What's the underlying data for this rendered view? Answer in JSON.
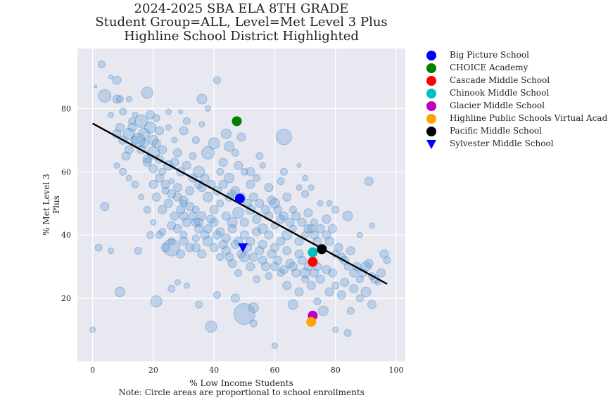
{
  "title_lines": [
    "2024-2025 SBA ELA 8TH GRADE",
    "Student Group=ALL, Level=Met Level 3 Plus",
    "Highline School District Highlighted"
  ],
  "chart_data": {
    "type": "scatter",
    "title": "2024-2025 SBA ELA 8TH GRADE\nStudent Group=ALL, Level=Met Level 3 Plus\nHighline School District Highlighted",
    "xlabel": "% Low Income Students",
    "ylabel": "% Met Level 3 Plus",
    "note": "Note: Circle areas are proportional to school enrollments",
    "xlim": [
      -5,
      103
    ],
    "ylim": [
      0,
      99
    ],
    "xticks": [
      0,
      20,
      40,
      60,
      80,
      100
    ],
    "yticks": [
      20,
      40,
      60,
      80
    ],
    "grid": true,
    "legend_position": "outside-right",
    "background_color": "#e8e8f1",
    "background_points_color": "#4c8fca",
    "trend_line": {
      "x": [
        0,
        97
      ],
      "y": [
        75.3,
        24.5
      ],
      "color": "#000000"
    },
    "background_points": [
      [
        3,
        94,
        5
      ],
      [
        6,
        90,
        3
      ],
      [
        8,
        89,
        6
      ],
      [
        1,
        87,
        2
      ],
      [
        4,
        84,
        9
      ],
      [
        8,
        83,
        6
      ],
      [
        9,
        83,
        5
      ],
      [
        12,
        83,
        4
      ],
      [
        18,
        85,
        8
      ],
      [
        6,
        78,
        4
      ],
      [
        10,
        79,
        5
      ],
      [
        14,
        78,
        4
      ],
      [
        16,
        76,
        9
      ],
      [
        19,
        78,
        6
      ],
      [
        21,
        77,
        5
      ],
      [
        25,
        79,
        4
      ],
      [
        29,
        79,
        3
      ],
      [
        22,
        73,
        6
      ],
      [
        9,
        74,
        6
      ],
      [
        12,
        72,
        8
      ],
      [
        15,
        70,
        10
      ],
      [
        17,
        72,
        8
      ],
      [
        20,
        70,
        7
      ],
      [
        13,
        76,
        5
      ],
      [
        19,
        74,
        8
      ],
      [
        25,
        74,
        4
      ],
      [
        30,
        73,
        6
      ],
      [
        31,
        76,
        5
      ],
      [
        36,
        75,
        4
      ],
      [
        34,
        70,
        5
      ],
      [
        27,
        70,
        4
      ],
      [
        28,
        66,
        6
      ],
      [
        20,
        66,
        9
      ],
      [
        22,
        64,
        6
      ],
      [
        18,
        63,
        6
      ],
      [
        23,
        60,
        5
      ],
      [
        25,
        62,
        7
      ],
      [
        33,
        65,
        5
      ],
      [
        35,
        60,
        8
      ],
      [
        38,
        66,
        9
      ],
      [
        40,
        69,
        8
      ],
      [
        44,
        72,
        7
      ],
      [
        47,
        66,
        5
      ],
      [
        48,
        62,
        6
      ],
      [
        42,
        60,
        5
      ],
      [
        43,
        63,
        6
      ],
      [
        45,
        58,
        7
      ],
      [
        50,
        60,
        5
      ],
      [
        46,
        53,
        6
      ],
      [
        52,
        56,
        6
      ],
      [
        54,
        58,
        5
      ],
      [
        56,
        62,
        4
      ],
      [
        58,
        55,
        6
      ],
      [
        60,
        50,
        7
      ],
      [
        62,
        57,
        5
      ],
      [
        64,
        52,
        6
      ],
      [
        66,
        48,
        5
      ],
      [
        68,
        55,
        4
      ],
      [
        70,
        53,
        5
      ],
      [
        71,
        47,
        6
      ],
      [
        73,
        44,
        5
      ],
      [
        75,
        50,
        4
      ],
      [
        77,
        45,
        6
      ],
      [
        20,
        56,
        6
      ],
      [
        24,
        54,
        5
      ],
      [
        26,
        57,
        4
      ],
      [
        28,
        52,
        6
      ],
      [
        30,
        50,
        5
      ],
      [
        32,
        54,
        6
      ],
      [
        34,
        48,
        5
      ],
      [
        36,
        55,
        6
      ],
      [
        38,
        52,
        7
      ],
      [
        40,
        48,
        6
      ],
      [
        42,
        50,
        5
      ],
      [
        44,
        46,
        6
      ],
      [
        46,
        44,
        7
      ],
      [
        48,
        47,
        8
      ],
      [
        50,
        44,
        6
      ],
      [
        52,
        48,
        7
      ],
      [
        54,
        45,
        6
      ],
      [
        56,
        42,
        7
      ],
      [
        58,
        46,
        6
      ],
      [
        60,
        43,
        5
      ],
      [
        62,
        45,
        6
      ],
      [
        64,
        40,
        7
      ],
      [
        66,
        42,
        5
      ],
      [
        68,
        38,
        6
      ],
      [
        70,
        40,
        5
      ],
      [
        72,
        42,
        6
      ],
      [
        74,
        38,
        6
      ],
      [
        76,
        36,
        5
      ],
      [
        78,
        38,
        6
      ],
      [
        80,
        34,
        5
      ],
      [
        82,
        33,
        6
      ],
      [
        84,
        30,
        5
      ],
      [
        86,
        28,
        6
      ],
      [
        88,
        26,
        5
      ],
      [
        90,
        30,
        7
      ],
      [
        92,
        27,
        5
      ],
      [
        94,
        25,
        4
      ],
      [
        96,
        34,
        6
      ],
      [
        97,
        32,
        5
      ],
      [
        90,
        22,
        7
      ],
      [
        92,
        18,
        6
      ],
      [
        88,
        20,
        5
      ],
      [
        85,
        16,
        5
      ],
      [
        82,
        21,
        6
      ],
      [
        80,
        24,
        5
      ],
      [
        78,
        22,
        6
      ],
      [
        76,
        16,
        7
      ],
      [
        74,
        19,
        5
      ],
      [
        72,
        24,
        6
      ],
      [
        70,
        26,
        5
      ],
      [
        68,
        22,
        6
      ],
      [
        66,
        18,
        7
      ],
      [
        64,
        24,
        6
      ],
      [
        62,
        28,
        5
      ],
      [
        60,
        30,
        6
      ],
      [
        58,
        27,
        5
      ],
      [
        56,
        32,
        6
      ],
      [
        54,
        26,
        5
      ],
      [
        52,
        30,
        6
      ],
      [
        50,
        33,
        7
      ],
      [
        48,
        28,
        5
      ],
      [
        46,
        31,
        6
      ],
      [
        44,
        35,
        6
      ],
      [
        42,
        33,
        5
      ],
      [
        40,
        36,
        6
      ],
      [
        38,
        38,
        7
      ],
      [
        36,
        34,
        6
      ],
      [
        34,
        39,
        5
      ],
      [
        32,
        36,
        6
      ],
      [
        30,
        40,
        5
      ],
      [
        28,
        42,
        6
      ],
      [
        26,
        38,
        5
      ],
      [
        24,
        36,
        6
      ],
      [
        22,
        40,
        5
      ],
      [
        20,
        44,
        4
      ],
      [
        18,
        48,
        5
      ],
      [
        16,
        52,
        4
      ],
      [
        14,
        56,
        5
      ],
      [
        12,
        58,
        4
      ],
      [
        10,
        60,
        5
      ],
      [
        8,
        62,
        4
      ],
      [
        26,
        36,
        12
      ],
      [
        29,
        34,
        6
      ],
      [
        30,
        38,
        6
      ],
      [
        34,
        36,
        6
      ],
      [
        26,
        43,
        6
      ],
      [
        30,
        46,
        6
      ],
      [
        35,
        44,
        6
      ],
      [
        50,
        15,
        15
      ],
      [
        53,
        17,
        7
      ],
      [
        47,
        20,
        6
      ],
      [
        41,
        21,
        5
      ],
      [
        28,
        25,
        4
      ],
      [
        26,
        23,
        5
      ],
      [
        21,
        19,
        8
      ],
      [
        9,
        22,
        7
      ],
      [
        4,
        49,
        6
      ],
      [
        2,
        36,
        5
      ],
      [
        6,
        35,
        4
      ],
      [
        15,
        35,
        5
      ],
      [
        19,
        40,
        5
      ],
      [
        23,
        41,
        5
      ],
      [
        0,
        10,
        4
      ],
      [
        39,
        11,
        8
      ],
      [
        35,
        18,
        5
      ],
      [
        31,
        24,
        4
      ],
      [
        60,
        5,
        4
      ],
      [
        53,
        12,
        5
      ],
      [
        80,
        10,
        4
      ],
      [
        84,
        9,
        5
      ],
      [
        88,
        40,
        4
      ],
      [
        92,
        43,
        4
      ],
      [
        84,
        46,
        7
      ],
      [
        80,
        48,
        5
      ],
      [
        78,
        50,
        4
      ],
      [
        72,
        55,
        4
      ],
      [
        70,
        58,
        4
      ],
      [
        68,
        62,
        3
      ],
      [
        63,
        60,
        5
      ],
      [
        55,
        65,
        5
      ],
      [
        52,
        60,
        6
      ],
      [
        49,
        71,
        6
      ],
      [
        45,
        68,
        7
      ],
      [
        36,
        83,
        7
      ],
      [
        38,
        80,
        4
      ],
      [
        41,
        89,
        5
      ],
      [
        63,
        71,
        11
      ],
      [
        91,
        57,
        6
      ],
      [
        70,
        28,
        7
      ],
      [
        74,
        30,
        6
      ],
      [
        68,
        34,
        6
      ],
      [
        66,
        30,
        6
      ],
      [
        64,
        35,
        6
      ],
      [
        62,
        38,
        6
      ],
      [
        60,
        36,
        6
      ],
      [
        58,
        40,
        6
      ],
      [
        56,
        37,
        6
      ],
      [
        54,
        41,
        6
      ],
      [
        52,
        38,
        6
      ],
      [
        50,
        40,
        6
      ],
      [
        48,
        38,
        6
      ],
      [
        46,
        42,
        6
      ],
      [
        44,
        39,
        6
      ],
      [
        42,
        41,
        6
      ],
      [
        40,
        44,
        6
      ],
      [
        38,
        42,
        6
      ],
      [
        36,
        46,
        6
      ],
      [
        34,
        44,
        6
      ],
      [
        32,
        49,
        6
      ],
      [
        30,
        51,
        6
      ],
      [
        28,
        55,
        6
      ],
      [
        26,
        53,
        6
      ],
      [
        24,
        56,
        6
      ],
      [
        22,
        58,
        6
      ],
      [
        20,
        61,
        6
      ],
      [
        18,
        64,
        6
      ],
      [
        16,
        67,
        6
      ],
      [
        14,
        70,
        6
      ],
      [
        12,
        67,
        6
      ],
      [
        10,
        70,
        6
      ],
      [
        8,
        72,
        6
      ],
      [
        11,
        65,
        6
      ],
      [
        13,
        74,
        6
      ],
      [
        17,
        69,
        6
      ],
      [
        21,
        69,
        6
      ],
      [
        23,
        67,
        6
      ],
      [
        27,
        63,
        6
      ],
      [
        29,
        60,
        6
      ],
      [
        31,
        62,
        6
      ],
      [
        33,
        58,
        6
      ],
      [
        35,
        56,
        6
      ],
      [
        37,
        58,
        6
      ],
      [
        39,
        56,
        6
      ],
      [
        41,
        54,
        6
      ],
      [
        43,
        56,
        6
      ],
      [
        45,
        52,
        6
      ],
      [
        47,
        54,
        6
      ],
      [
        49,
        52,
        6
      ],
      [
        51,
        50,
        6
      ],
      [
        53,
        52,
        6
      ],
      [
        55,
        50,
        6
      ],
      [
        57,
        48,
        6
      ],
      [
        59,
        51,
        6
      ],
      [
        61,
        48,
        6
      ],
      [
        63,
        46,
        6
      ],
      [
        65,
        44,
        6
      ],
      [
        67,
        46,
        6
      ],
      [
        69,
        44,
        6
      ],
      [
        71,
        42,
        6
      ],
      [
        73,
        40,
        6
      ],
      [
        75,
        42,
        6
      ],
      [
        77,
        40,
        6
      ],
      [
        79,
        42,
        6
      ],
      [
        81,
        36,
        6
      ],
      [
        83,
        32,
        6
      ],
      [
        85,
        35,
        6
      ],
      [
        87,
        30,
        6
      ],
      [
        89,
        28,
        6
      ],
      [
        91,
        31,
        6
      ],
      [
        93,
        26,
        6
      ],
      [
        95,
        28,
        6
      ],
      [
        86,
        23,
        6
      ],
      [
        83,
        25,
        6
      ],
      [
        79,
        28,
        6
      ],
      [
        77,
        29,
        6
      ],
      [
        75,
        26,
        6
      ],
      [
        73,
        28,
        6
      ],
      [
        71,
        30,
        6
      ],
      [
        69,
        32,
        6
      ],
      [
        67,
        28,
        6
      ],
      [
        65,
        31,
        6
      ],
      [
        63,
        29,
        6
      ],
      [
        61,
        32,
        6
      ],
      [
        59,
        34,
        6
      ],
      [
        57,
        30,
        6
      ],
      [
        55,
        35,
        6
      ],
      [
        53,
        33,
        6
      ],
      [
        51,
        36,
        6
      ],
      [
        49,
        34,
        6
      ],
      [
        47,
        37,
        6
      ],
      [
        45,
        33,
        6
      ],
      [
        43,
        37,
        6
      ],
      [
        41,
        40,
        6
      ],
      [
        39,
        45,
        6
      ],
      [
        37,
        40,
        6
      ],
      [
        35,
        42,
        6
      ],
      [
        33,
        46,
        6
      ],
      [
        31,
        44,
        6
      ],
      [
        29,
        48,
        6
      ],
      [
        27,
        46,
        6
      ],
      [
        25,
        50,
        6
      ],
      [
        23,
        48,
        6
      ],
      [
        21,
        52,
        6
      ]
    ],
    "highlighted": [
      {
        "name": "Big Picture School",
        "x": 48.5,
        "y": 51.5,
        "color": "#0000ff",
        "marker": "circle"
      },
      {
        "name": "CHOICE Academy",
        "x": 47.5,
        "y": 76,
        "color": "#008000",
        "marker": "circle"
      },
      {
        "name": "Cascade Middle School",
        "x": 72.5,
        "y": 31.5,
        "color": "#ff0000",
        "marker": "circle"
      },
      {
        "name": "Chinook Middle School",
        "x": 72.5,
        "y": 34.5,
        "color": "#00bfbf",
        "marker": "circle"
      },
      {
        "name": "Glacier Middle School",
        "x": 72.5,
        "y": 14.5,
        "color": "#bf00bf",
        "marker": "circle"
      },
      {
        "name": "Highline Public Schools Virtual Academy",
        "x": 72.0,
        "y": 12.5,
        "color": "#ffa500",
        "marker": "circle"
      },
      {
        "name": "Pacific Middle School",
        "x": 75.5,
        "y": 35.5,
        "color": "#000000",
        "marker": "circle"
      },
      {
        "name": "Sylvester Middle School",
        "x": 49.5,
        "y": 36,
        "color": "#0000ff",
        "marker": "triangle-down"
      }
    ]
  }
}
